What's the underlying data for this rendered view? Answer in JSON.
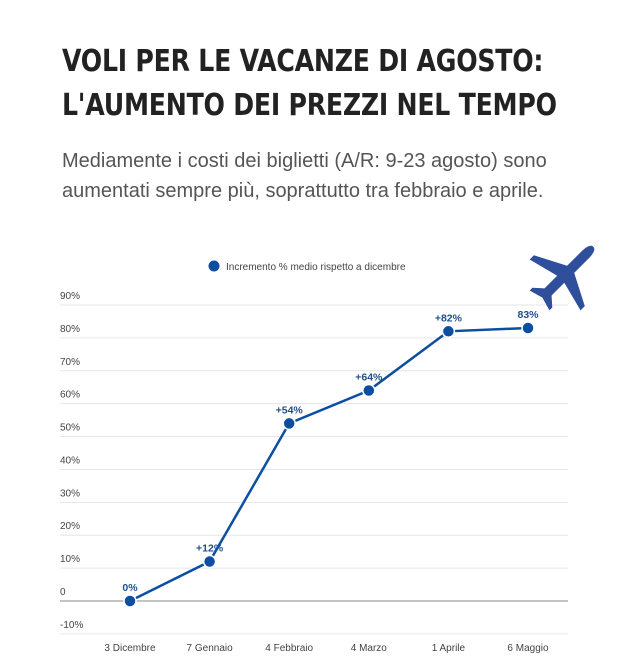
{
  "title_lines": [
    "VOLI PER LE VACANZE DI AGOSTO:",
    "L'AUMENTO DEI PREZZI NEL TEMPO"
  ],
  "subtitle": "Mediamente i costi dei  biglietti (A/R: 9-23 agosto) sono aumentati sempre più, soprattutto tra febbraio e aprile.",
  "icon": "airplane-icon",
  "chart_data": {
    "type": "line",
    "categories": [
      "3 Dicembre",
      "7 Gennaio",
      "4 Febbraio",
      "4 Marzo",
      "1 Aprile",
      "6 Maggio"
    ],
    "series": [
      {
        "name": "Incremento % medio rispetto a dicembre",
        "values": [
          0,
          12,
          54,
          64,
          82,
          83
        ],
        "labels": [
          "0%",
          "+12%",
          "+54%",
          "+64%",
          "+82%",
          "83%"
        ]
      }
    ],
    "ylim": [
      -10,
      90
    ],
    "yticks": [
      -10,
      0,
      10,
      20,
      30,
      40,
      50,
      60,
      70,
      80,
      90
    ],
    "ytick_labels": [
      "-10%",
      "0",
      "10%",
      "20%",
      "30%",
      "40%",
      "50%",
      "60%",
      "70%",
      "80%",
      "90%"
    ],
    "grid": true,
    "legend": "top",
    "colors": {
      "series": "#0b4ea2",
      "grid": "#e6e6e6",
      "zero": "#888888"
    }
  }
}
